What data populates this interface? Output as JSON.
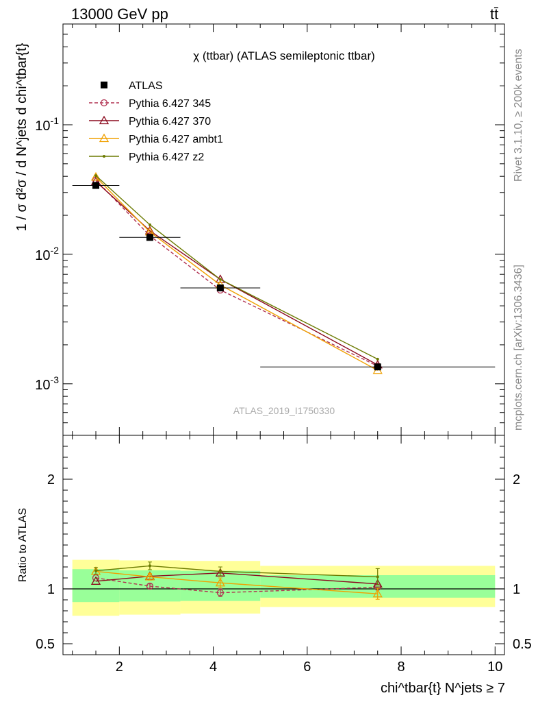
{
  "header": {
    "energy_label": "13000 GeV pp",
    "process_label": "tt̄"
  },
  "side_labels": {
    "rivet": "Rivet 3.1.10, ≥ 200k events",
    "mcplots": "mcplots.cern.ch [arXiv:1306.3436]"
  },
  "watermark": "ATLAS_2019_I1750330",
  "chart_data": [
    {
      "type": "line",
      "panel": "main",
      "title": "χ (ttbar) (ATLAS semileptonic ttbar)",
      "ylabel": "1 / σ d²σ / d N^jets d chi^tbar{t}",
      "yscale": "log",
      "ylim": [
        0.0004,
        0.6
      ],
      "xlim": [
        0.8,
        10.2
      ],
      "x_ticks": [
        2,
        4,
        6,
        8,
        10
      ],
      "y_ticks": [
        0.001,
        0.01,
        0.1
      ],
      "y_tick_labels": [
        "10^-3",
        "10^-2",
        "10^-1"
      ],
      "legend_position": "top-left",
      "data": {
        "name": "ATLAS",
        "x": [
          1.5,
          2.65,
          4.15,
          7.5
        ],
        "y": [
          0.034,
          0.0135,
          0.0055,
          0.00135
        ],
        "xerr": [
          [
            1.0,
            2.0
          ],
          [
            2.0,
            3.3
          ],
          [
            3.3,
            5.0
          ],
          [
            5.0,
            10.0
          ]
        ],
        "color": "#000000"
      },
      "series": [
        {
          "name": "Pythia 6.427 345",
          "x": [
            1.5,
            2.65,
            4.15,
            7.5
          ],
          "y": [
            0.0375,
            0.0139,
            0.0053,
            0.00137
          ],
          "color": "#b03050",
          "dashed": true,
          "marker": "circle"
        },
        {
          "name": "Pythia 6.427 370",
          "x": [
            1.5,
            2.65,
            4.15,
            7.5
          ],
          "y": [
            0.0365,
            0.0152,
            0.0064,
            0.0014
          ],
          "color": "#8b0a1e",
          "dashed": false,
          "marker": "triangle"
        },
        {
          "name": "Pythia 6.427 ambt1",
          "x": [
            1.5,
            2.65,
            4.15,
            7.5
          ],
          "y": [
            0.0395,
            0.0149,
            0.0058,
            0.00127
          ],
          "color": "#f0a000",
          "dashed": false,
          "marker": "triangle"
        },
        {
          "name": "Pythia 6.427 z2",
          "x": [
            1.5,
            2.65,
            4.15,
            7.5
          ],
          "y": [
            0.0405,
            0.0169,
            0.0064,
            0.00155
          ],
          "color": "#6b7a00",
          "dashed": false,
          "marker": "dot"
        }
      ]
    },
    {
      "type": "line",
      "panel": "ratio",
      "ylabel": "Ratio to ATLAS",
      "xlabel": "chi^tbar{t} N^jets ≥ 7",
      "ylim": [
        0.4,
        2.4
      ],
      "xlim": [
        0.8,
        10.2
      ],
      "x_ticks": [
        2,
        4,
        6,
        8,
        10
      ],
      "y_ticks": [
        0.5,
        1,
        2
      ],
      "y_tick_labels": [
        "0.5",
        "1",
        "2"
      ],
      "bands": [
        {
          "xmin": 1.0,
          "xmax": 2.0,
          "yellow": [
            0.755,
            1.265
          ],
          "green": [
            0.88,
            1.18
          ]
        },
        {
          "xmin": 2.0,
          "xmax": 3.3,
          "yellow": [
            0.765,
            1.26
          ],
          "green": [
            0.885,
            1.17
          ]
        },
        {
          "xmin": 3.3,
          "xmax": 5.0,
          "yellow": [
            0.775,
            1.255
          ],
          "green": [
            0.89,
            1.165
          ]
        },
        {
          "xmin": 5.0,
          "xmax": 10.0,
          "yellow": [
            0.835,
            1.21
          ],
          "green": [
            0.92,
            1.125
          ]
        }
      ],
      "series": [
        {
          "name": "Pythia 6.427 345",
          "x": [
            1.5,
            2.65,
            4.15,
            7.5
          ],
          "y": [
            1.1,
            1.025,
            0.965,
            1.015
          ],
          "err": [
            0.0,
            0.02,
            0.035,
            0.0
          ],
          "color": "#b03050",
          "dashed": true,
          "marker": "circle"
        },
        {
          "name": "Pythia 6.427 370",
          "x": [
            1.5,
            2.65,
            4.15,
            7.5
          ],
          "y": [
            1.07,
            1.115,
            1.145,
            1.045
          ],
          "err": [
            0.0,
            0.0,
            0.0,
            0.0
          ],
          "color": "#8b0a1e",
          "dashed": false,
          "marker": "triangle"
        },
        {
          "name": "Pythia 6.427 ambt1",
          "x": [
            1.5,
            2.65,
            4.15,
            7.5
          ],
          "y": [
            1.16,
            1.11,
            1.055,
            0.955
          ],
          "err": [
            0.0,
            0.03,
            0.045,
            0.05
          ],
          "color": "#f0a000",
          "dashed": false,
          "marker": "triangle"
        },
        {
          "name": "Pythia 6.427 z2",
          "x": [
            1.5,
            2.65,
            4.15,
            7.5
          ],
          "y": [
            1.165,
            1.21,
            1.16,
            1.11
          ],
          "err": [
            0.03,
            0.035,
            0.04,
            0.075
          ],
          "color": "#6b7a00",
          "dashed": false,
          "marker": "dot"
        }
      ]
    }
  ]
}
